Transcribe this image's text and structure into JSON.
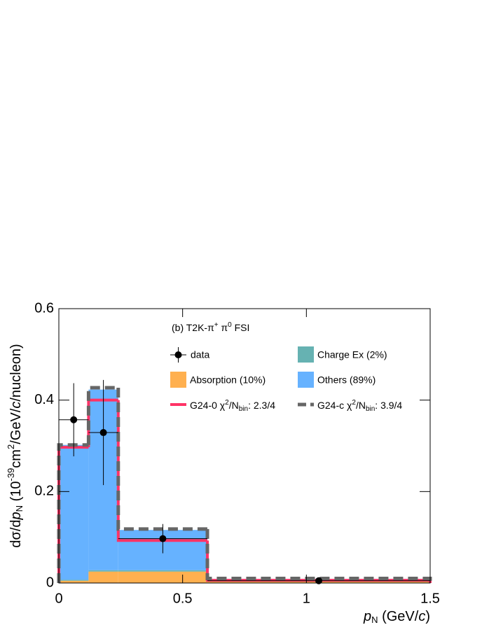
{
  "chart_data": {
    "type": "histogram",
    "annotation": [
      "(b) T2K-π",
      "+",
      "  π",
      "0",
      " FSI"
    ],
    "xlabel": [
      "p",
      "N",
      " (GeV/",
      "c",
      ")"
    ],
    "ylabel": [
      "dσ/d",
      "p",
      "N",
      " (10",
      "-39",
      "cm",
      "2",
      "/GeV/",
      "c",
      "/nucleon)"
    ],
    "bins": [
      0,
      0.12,
      0.24,
      0.6,
      1.5
    ],
    "series": [
      {
        "name": "Absorption (10%)",
        "color": "#ffb04f",
        "values": [
          0.005,
          0.025,
          0.025,
          0.003
        ]
      },
      {
        "name": "Charge Ex (2%)",
        "color": "#66b2b2",
        "values": [
          0.002,
          0.003,
          0.003,
          0.001
        ]
      },
      {
        "name": "Others (89%)",
        "color": "#66b2ff",
        "values": [
          0.295,
          0.395,
          0.088,
          0.005
        ]
      }
    ],
    "lines": [
      {
        "name": [
          "G24-0 χ",
          "2",
          "/N",
          "bin",
          ": 2.3/4"
        ],
        "color": "#ff3366",
        "values": [
          0.297,
          0.4,
          0.093,
          0.006
        ]
      },
      {
        "name": [
          "G24-c χ",
          "2",
          "/N",
          "bin",
          ": 3.9/4"
        ],
        "color": "#666666",
        "dashed": true,
        "values": [
          0.302,
          0.427,
          0.118,
          0.01
        ]
      }
    ],
    "data": {
      "name": "data",
      "color": "#000000",
      "x": [
        0.06,
        0.18,
        0.42,
        1.05
      ],
      "xerr": [
        0.06,
        0.06,
        0.18,
        0.45
      ],
      "values": [
        0.357,
        0.329,
        0.097,
        0.005
      ],
      "errors": [
        0.08,
        0.115,
        0.032,
        0.003
      ]
    },
    "xlim": [
      0,
      1.5
    ],
    "xticks": [
      0,
      0.5,
      1,
      1.5
    ],
    "ylim": [
      0,
      0.6
    ],
    "yticks": [
      0,
      0.2,
      0.4,
      0.6
    ]
  }
}
